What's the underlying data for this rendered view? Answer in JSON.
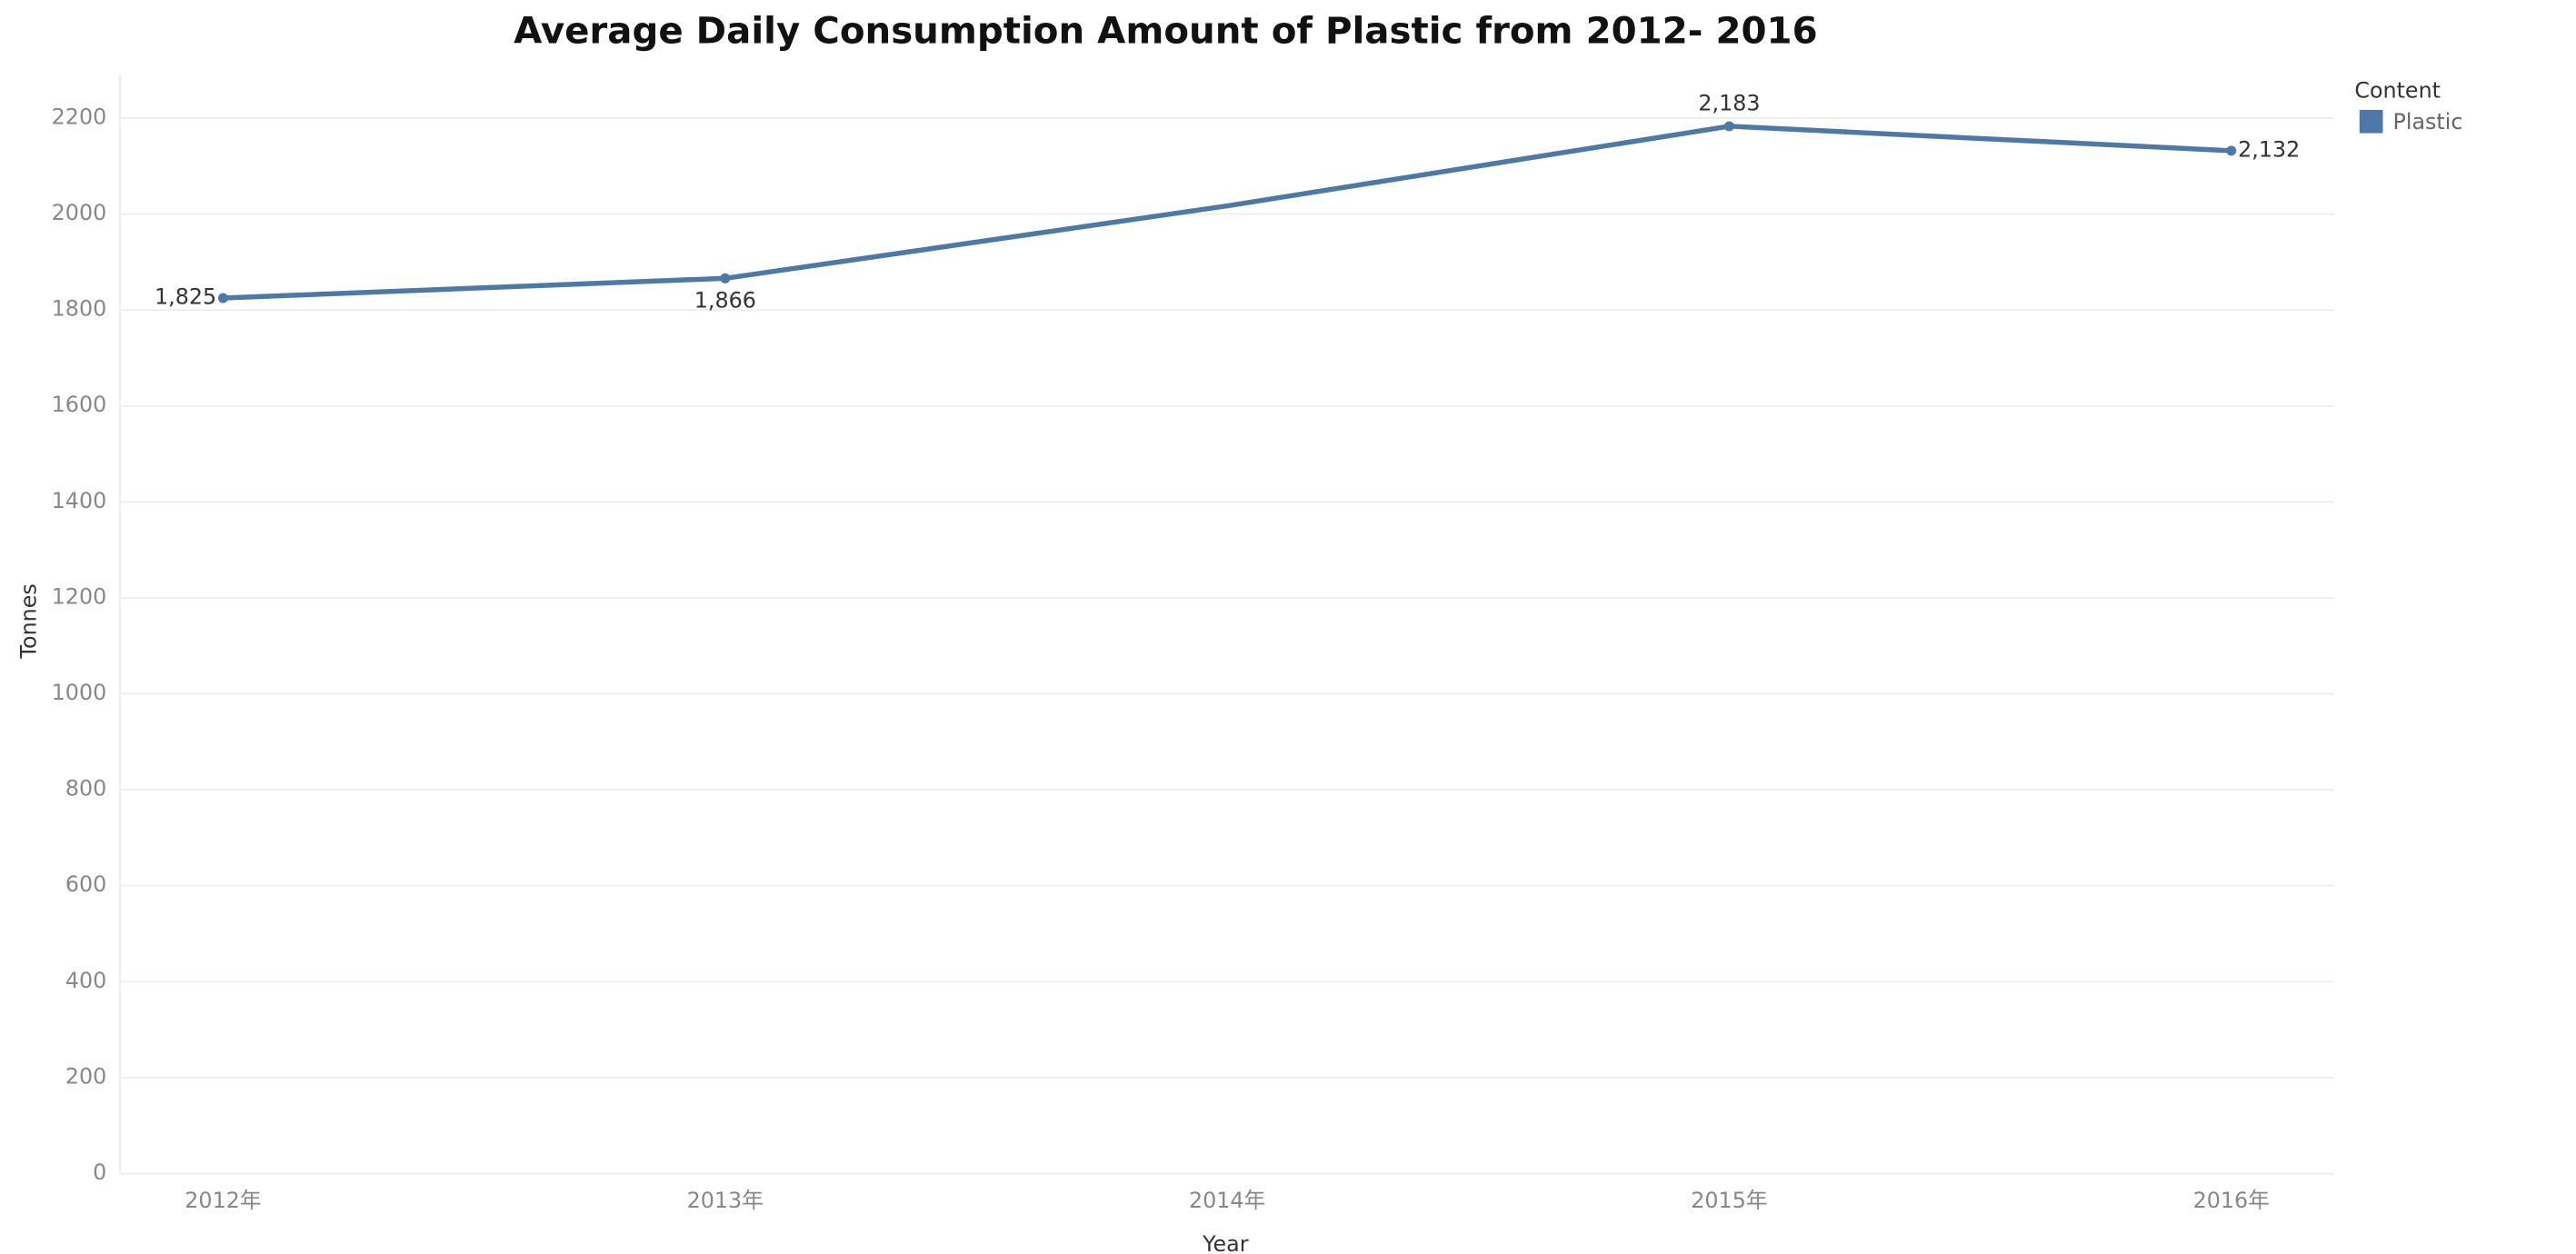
{
  "chart_data": {
    "type": "line",
    "title": "Average Daily Consumption Amount of Plastic from 2012- 2016",
    "x_label": "Year",
    "y_label": "Tonnes",
    "legend_title": "Content",
    "categories": [
      "2012年",
      "2013年",
      "2014年",
      "2015年",
      "2016年"
    ],
    "series": [
      {
        "name": "Plastic",
        "color": "#4e79a7",
        "values": [
          1825,
          1866,
          2017,
          2183,
          2132
        ],
        "value_labels": [
          "1,825",
          "1,866",
          null,
          "2,183",
          "2,132"
        ]
      }
    ],
    "ylim": [
      0,
      2290
    ],
    "yticks": [
      0,
      200,
      400,
      600,
      800,
      1000,
      1200,
      1400,
      1600,
      1800,
      2000,
      2200
    ],
    "grid": true,
    "legend": "right"
  }
}
